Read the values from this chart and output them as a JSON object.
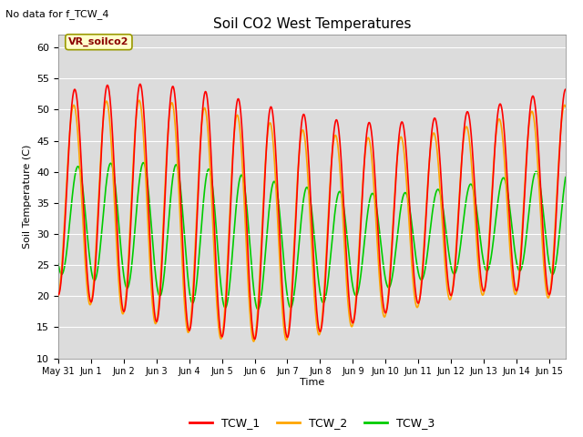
{
  "title": "Soil CO2 West Temperatures",
  "subtitle": "No data for f_TCW_4",
  "ylabel": "Soil Temperature (C)",
  "xlabel": "Time",
  "annotation": "VR_soilco2",
  "ylim": [
    10,
    62
  ],
  "yticks": [
    10,
    15,
    20,
    25,
    30,
    35,
    40,
    45,
    50,
    55,
    60
  ],
  "bg_color": "#dcdcdc",
  "line_colors": {
    "TCW_1": "#ff0000",
    "TCW_2": "#ffa500",
    "TCW_3": "#00cc00"
  },
  "legend_labels": [
    "TCW_1",
    "TCW_2",
    "TCW_3"
  ],
  "num_days": 15.5,
  "xtick_labels": [
    "May 31",
    "Jun 1",
    "Jun 2",
    "Jun 3",
    "Jun 4",
    "Jun 5",
    "Jun 6",
    "Jun 7",
    "Jun 8",
    "Jun 9",
    "Jun 10",
    "Jun 11",
    "Jun 12",
    "Jun 13",
    "Jun 14",
    "Jun 15"
  ]
}
